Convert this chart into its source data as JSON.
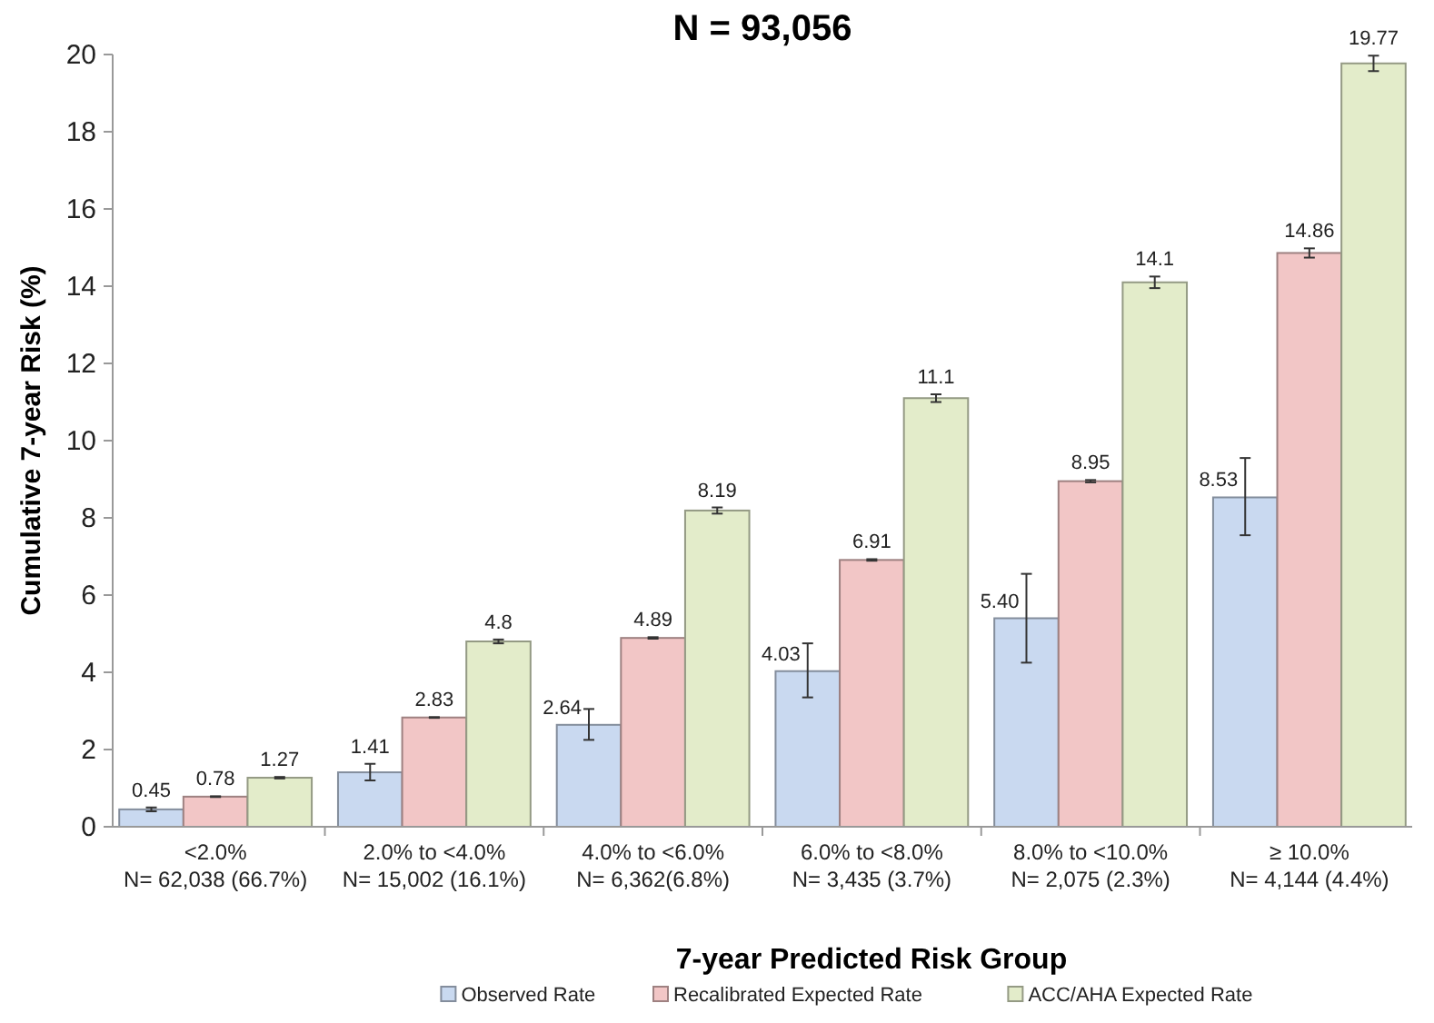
{
  "chart_data": {
    "type": "bar",
    "title": "N = 93,056",
    "xlabel": "7-year Predicted Risk Group",
    "ylabel": "Cumulative 7-year Risk (%)",
    "categories": [
      "<2.0%\nN= 62,038 (66.7%)",
      "2.0% to <4.0%\nN= 15,002 (16.1%)",
      "4.0% to <6.0%\nN= 6,362(6.8%)",
      "6.0% to <8.0%\nN= 3,435 (3.7%)",
      "8.0% to <10.0%\nN= 2,075 (2.3%)",
      "≥ 10.0%\nN= 4,144 (4.4%)"
    ],
    "series": [
      {
        "name": "Observed Rate",
        "color": "#c9d9f0",
        "values": [
          0.45,
          1.41,
          2.64,
          4.03,
          5.4,
          8.53
        ],
        "errors": [
          0.05,
          [
            1.2,
            1.63
          ],
          [
            2.25,
            3.05
          ],
          [
            3.35,
            4.75
          ],
          [
            4.25,
            6.55
          ],
          [
            7.55,
            9.55
          ]
        ],
        "value_labels": [
          "0.45",
          "1.41",
          "2.64",
          "4.03",
          "5.40",
          "8.53"
        ]
      },
      {
        "name": "Recalibrated  Expected Rate",
        "color": "#f2c6c6",
        "values": [
          0.78,
          2.83,
          4.89,
          6.91,
          8.95,
          14.86
        ],
        "errors": [
          0.01,
          0.01,
          0.02,
          0.02,
          0.03,
          0.12
        ],
        "value_labels": [
          "0.78",
          "2.83",
          "4.89",
          "6.91",
          "8.95",
          "14.86"
        ]
      },
      {
        "name": "ACC/AHA Expected Rate",
        "color": "#e3ecca",
        "values": [
          1.27,
          4.8,
          8.19,
          11.1,
          14.1,
          19.77
        ],
        "errors": [
          0.02,
          0.05,
          0.08,
          0.1,
          0.15,
          0.2
        ],
        "value_labels": [
          "1.27",
          "4.8",
          "8.19",
          "11.1",
          "14.1",
          "19.77"
        ]
      }
    ],
    "ylim": [
      0,
      20
    ],
    "yticks": [
      0,
      2,
      4,
      6,
      8,
      10,
      12,
      14,
      16,
      18,
      20
    ],
    "legend": "bottom"
  }
}
